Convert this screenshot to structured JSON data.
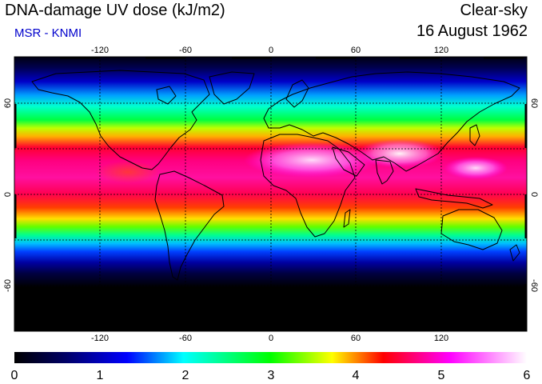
{
  "header": {
    "title": "DNA-damage UV dose (kJ/m2)",
    "subtitle": "MSR - KNMI",
    "condition": "Clear-sky",
    "date": "16 August 1962"
  },
  "map": {
    "lon_ticks": [
      "-120",
      "-60",
      "0",
      "60",
      "120"
    ],
    "lat_ticks": [
      "60",
      "0",
      "-60"
    ],
    "lat_ticks_right": [
      "60",
      "0",
      "-60"
    ]
  },
  "colorbar": {
    "labels": [
      "0",
      "1",
      "2",
      "3",
      "4",
      "5",
      "6"
    ],
    "colors": [
      "#000000",
      "#000066",
      "#0000ff",
      "#00ffff",
      "#00ff00",
      "#ffff00",
      "#ff0000",
      "#ff00ff",
      "#ffffff"
    ]
  },
  "colors": {
    "subtitle": "#0000cc",
    "coast": "#000000",
    "grid": "#000000"
  }
}
